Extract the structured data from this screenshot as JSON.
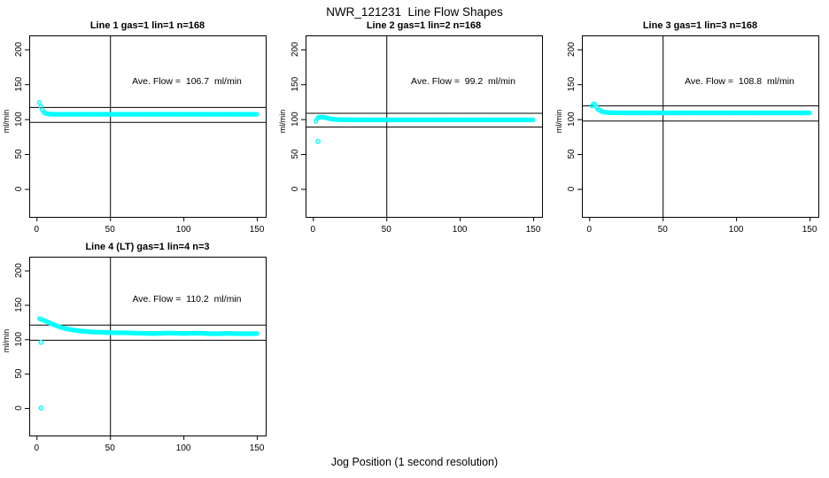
{
  "figure": {
    "title": "NWR_121231  Line Flow Shapes",
    "xlabel": "Jog Position (1 second resolution)",
    "background": "#ffffff",
    "point_color": "#00ffff",
    "line_color": "#000000"
  },
  "chart_data": [
    {
      "type": "scatter",
      "title": "Line 1 gas=1 lin=1 n=168",
      "annotation": "Ave. Flow =  106.7  ml/min",
      "ave_flow": 106.7,
      "n": 168,
      "ylabel": "ml/min",
      "x_ticks": [
        0,
        50,
        100,
        150
      ],
      "y_ticks": [
        0,
        50,
        100,
        150,
        200
      ],
      "xlim": [
        -5,
        156
      ],
      "ylim": [
        -40,
        220
      ],
      "vline_x": 50,
      "hlines": [
        117.4,
        96.0
      ],
      "x_step": 1,
      "profile": [
        [
          2,
          124
        ],
        [
          3,
          118
        ],
        [
          4,
          113
        ],
        [
          5,
          110
        ],
        [
          6,
          108.5
        ],
        [
          8,
          107.5
        ],
        [
          12,
          107
        ],
        [
          150,
          107
        ]
      ],
      "outliers": []
    },
    {
      "type": "scatter",
      "title": "Line 2 gas=1 lin=2 n=168",
      "annotation": "Ave. Flow =  99.2  ml/min",
      "ave_flow": 99.2,
      "n": 168,
      "ylabel": "ml/min",
      "x_ticks": [
        0,
        50,
        100,
        150
      ],
      "y_ticks": [
        0,
        50,
        100,
        150,
        200
      ],
      "xlim": [
        -5,
        156
      ],
      "ylim": [
        -40,
        220
      ],
      "vline_x": 50,
      "hlines": [
        109.1,
        89.3
      ],
      "x_step": 1,
      "profile": [
        [
          2,
          97
        ],
        [
          3,
          101
        ],
        [
          4,
          102.5
        ],
        [
          6,
          103
        ],
        [
          8,
          102.5
        ],
        [
          10,
          101.5
        ],
        [
          13,
          100
        ],
        [
          18,
          99.3
        ],
        [
          30,
          99
        ],
        [
          150,
          99
        ]
      ],
      "outliers": [
        [
          3.5,
          68
        ]
      ]
    },
    {
      "type": "scatter",
      "title": "Line 3 gas=1 lin=3 n=168",
      "annotation": "Ave. Flow =  108.8  ml/min",
      "ave_flow": 108.8,
      "n": 168,
      "ylabel": "ml/min",
      "x_ticks": [
        0,
        50,
        100,
        150
      ],
      "y_ticks": [
        0,
        50,
        100,
        150,
        200
      ],
      "xlim": [
        -5,
        156
      ],
      "ylim": [
        -40,
        220
      ],
      "vline_x": 50,
      "hlines": [
        119.7,
        97.9
      ],
      "x_step": 1,
      "profile": [
        [
          2,
          119
        ],
        [
          3,
          122
        ],
        [
          4,
          121
        ],
        [
          5,
          117
        ],
        [
          6,
          114
        ],
        [
          8,
          111.5
        ],
        [
          10,
          110
        ],
        [
          14,
          109.3
        ],
        [
          25,
          109
        ],
        [
          150,
          109
        ]
      ],
      "outliers": []
    },
    {
      "type": "scatter",
      "title": "Line 4 (LT) gas=1 lin=4 n=3",
      "annotation": "Ave. Flow =  110.2  ml/min",
      "ave_flow": 110.2,
      "n": 3,
      "ylabel": "ml/min",
      "x_ticks": [
        0,
        50,
        100,
        150
      ],
      "y_ticks": [
        0,
        50,
        100,
        150,
        200
      ],
      "xlim": [
        -5,
        156
      ],
      "ylim": [
        -40,
        220
      ],
      "vline_x": 50,
      "hlines": [
        121.2,
        99.2
      ],
      "x_step": 1,
      "profile": [
        [
          2,
          130
        ],
        [
          3,
          129
        ],
        [
          5,
          127.5
        ],
        [
          7,
          125.5
        ],
        [
          9,
          123.5
        ],
        [
          12,
          121
        ],
        [
          15,
          118.5
        ],
        [
          18,
          116.5
        ],
        [
          22,
          114.5
        ],
        [
          26,
          113
        ],
        [
          30,
          112
        ],
        [
          36,
          110.8
        ],
        [
          42,
          110.2
        ],
        [
          50,
          109.6
        ],
        [
          60,
          109.4
        ],
        [
          70,
          108.7
        ],
        [
          80,
          108.3
        ],
        [
          90,
          109
        ],
        [
          100,
          108.4
        ],
        [
          110,
          108.8
        ],
        [
          120,
          108
        ],
        [
          130,
          108.5
        ],
        [
          140,
          108
        ],
        [
          150,
          108.3
        ]
      ],
      "outliers": [
        [
          3,
          95.5
        ],
        [
          3,
          0
        ]
      ]
    }
  ]
}
